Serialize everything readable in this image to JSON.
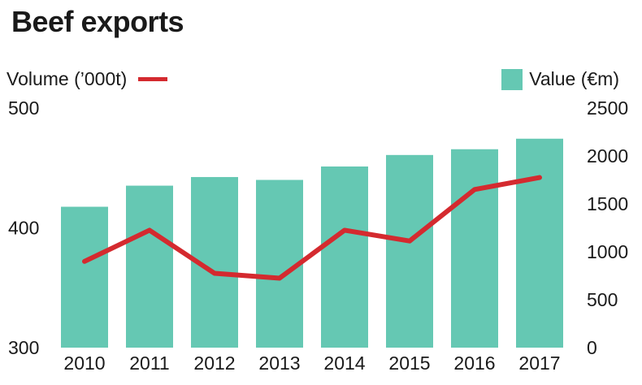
{
  "chart_data": {
    "type": "bar+line",
    "title": "Beef exports",
    "categories": [
      "2010",
      "2011",
      "2012",
      "2013",
      "2014",
      "2015",
      "2016",
      "2017"
    ],
    "series": [
      {
        "name": "Value (€m)",
        "type": "bar",
        "axis": "right",
        "values": [
          1470,
          1690,
          1780,
          1750,
          1890,
          2010,
          2070,
          2180
        ]
      },
      {
        "name": "Volume (’000t)",
        "type": "line",
        "axis": "left",
        "values": [
          372,
          398,
          362,
          358,
          398,
          389,
          432,
          442
        ]
      }
    ],
    "y_left": {
      "ylim": [
        300,
        500
      ],
      "ticks": [
        "300",
        "400",
        "500"
      ]
    },
    "y_right": {
      "ylim": [
        0,
        2500
      ],
      "ticks": [
        "0",
        "500",
        "1000",
        "1500",
        "2000",
        "2500"
      ]
    },
    "colors": {
      "bar": "#65c8b3",
      "line": "#d42a2f"
    },
    "grid": false,
    "legend": {
      "volume": "top-left",
      "value": "top-right"
    }
  }
}
